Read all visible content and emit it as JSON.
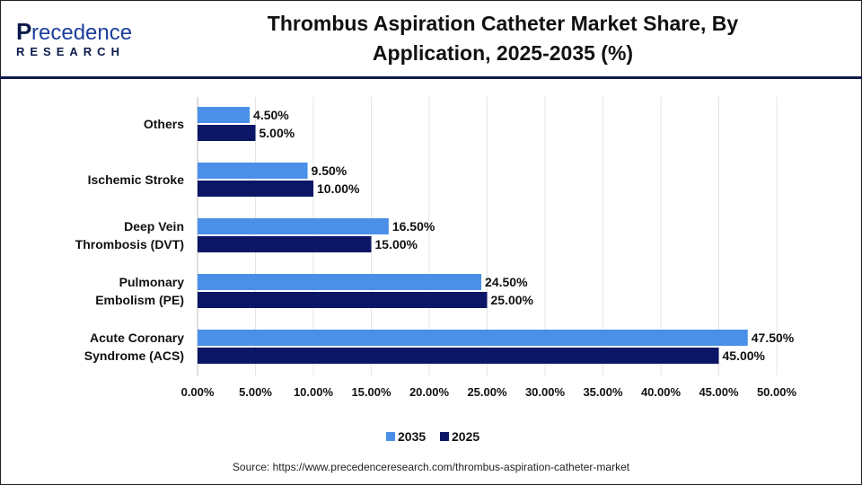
{
  "logo": {
    "line1": "Precedence",
    "line2": "RESEARCH"
  },
  "title_line1": "Thrombus Aspiration Catheter Market Share, By",
  "title_line2": "Application, 2025-2035 (%)",
  "source": "Source: https://www.precedenceresearch.com/thrombus-aspiration-catheter-market",
  "chart_data": {
    "type": "bar",
    "orientation": "horizontal",
    "title": "Thrombus Aspiration Catheter Market Share, By Application, 2025-2035 (%)",
    "categories": [
      [
        "Others"
      ],
      [
        "Ischemic Stroke"
      ],
      [
        "Deep Vein",
        "Thrombosis (DVT)"
      ],
      [
        "Pulmonary",
        "Embolism (PE)"
      ],
      [
        "Acute Coronary",
        "Syndrome (ACS)"
      ]
    ],
    "series": [
      {
        "name": "2035",
        "color": "#4a90e8",
        "values": [
          4.5,
          9.5,
          16.5,
          24.5,
          47.5
        ],
        "labels": [
          "4.50%",
          "9.50%",
          "16.50%",
          "24.50%",
          "47.50%"
        ]
      },
      {
        "name": "2025",
        "color": "#0b1766",
        "values": [
          5.0,
          10.0,
          15.0,
          25.0,
          45.0
        ],
        "labels": [
          "5.00%",
          "10.00%",
          "15.00%",
          "25.00%",
          "45.00%"
        ]
      }
    ],
    "xlim": [
      0,
      50
    ],
    "xticks": [
      "0.00%",
      "5.00%",
      "10.00%",
      "15.00%",
      "20.00%",
      "25.00%",
      "30.00%",
      "35.00%",
      "40.00%",
      "45.00%",
      "50.00%"
    ],
    "grid": true,
    "legend": "bottom"
  }
}
